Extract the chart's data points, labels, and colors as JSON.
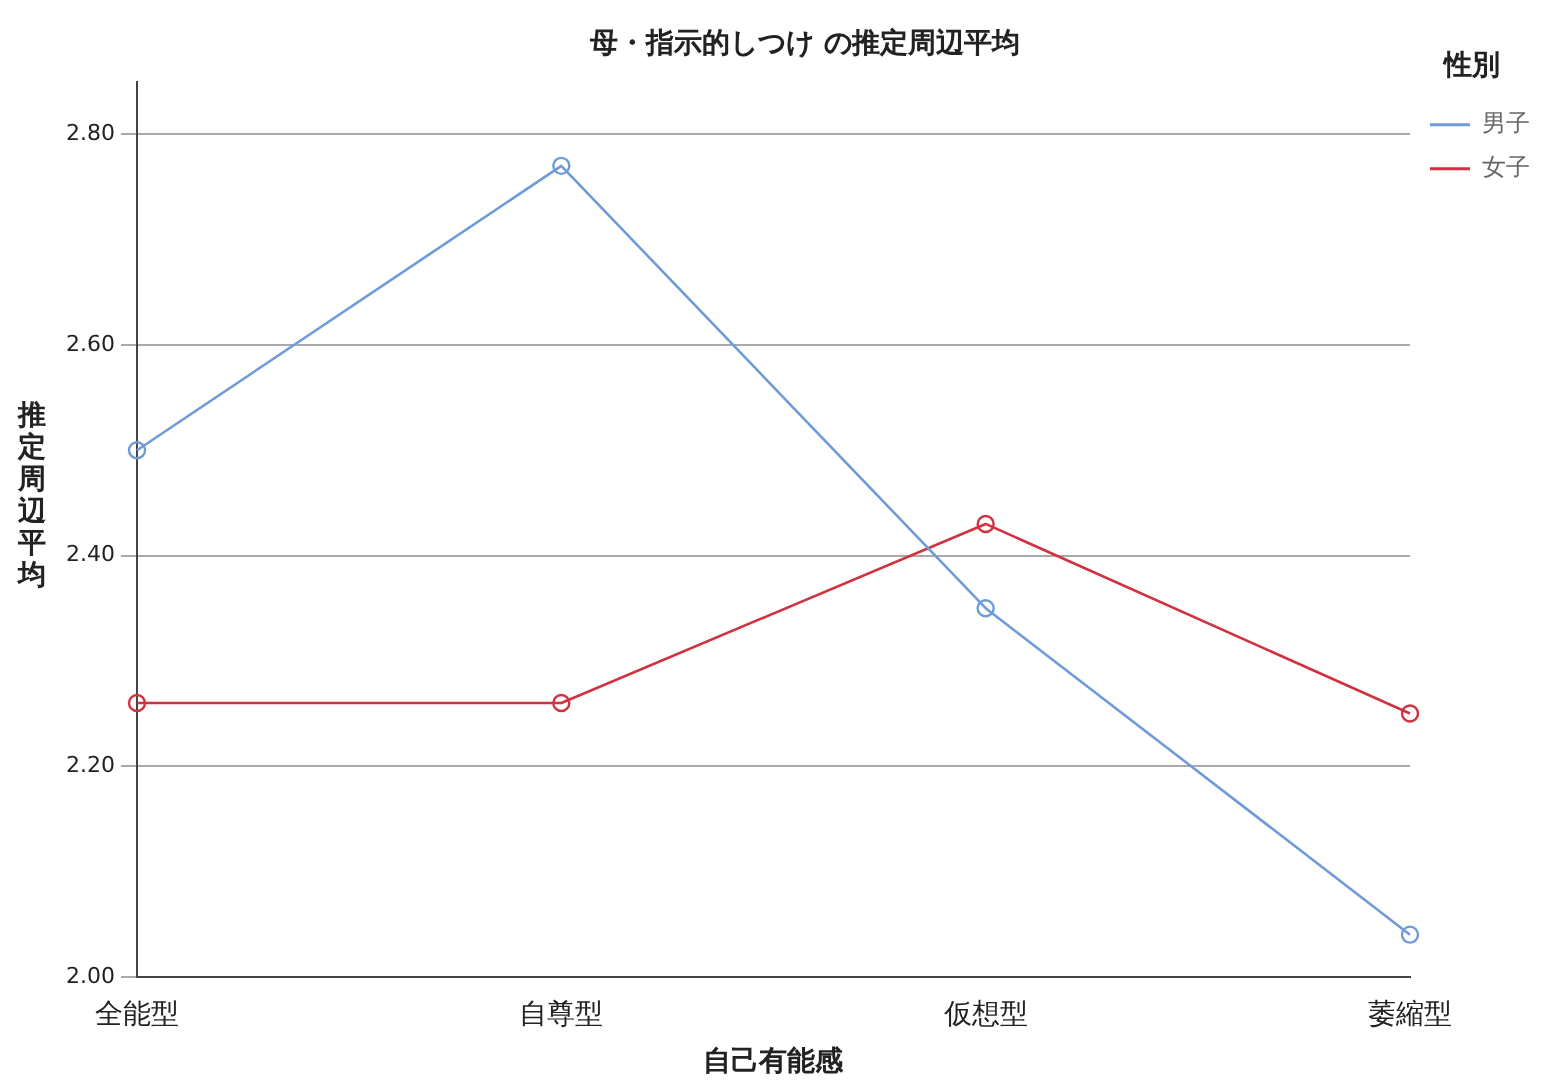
{
  "chart_data": {
    "type": "line",
    "title": "母・指示的しつけ の推定周辺平均",
    "xlabel": "自己有能感",
    "ylabel": "推定周辺平均",
    "legend_title": "性別",
    "categories": [
      "全能型",
      "自尊型",
      "仮想型",
      "萎縮型"
    ],
    "series": [
      {
        "name": "男子",
        "color": "#6f9bd8",
        "values": [
          2.5,
          2.77,
          2.35,
          2.04
        ]
      },
      {
        "name": "女子",
        "color": "#d0323f",
        "values": [
          2.26,
          2.26,
          2.43,
          2.25
        ]
      }
    ],
    "ylim": [
      2.0,
      2.85
    ],
    "yticks": [
      {
        "value": 2.0,
        "label": "2.00"
      },
      {
        "value": 2.2,
        "label": "2.20"
      },
      {
        "value": 2.4,
        "label": "2.40"
      },
      {
        "value": 2.6,
        "label": "2.60"
      },
      {
        "value": 2.8,
        "label": "2.80"
      }
    ],
    "grid": "y",
    "legend": "top right",
    "marker": "circle",
    "line_style": "solid"
  }
}
